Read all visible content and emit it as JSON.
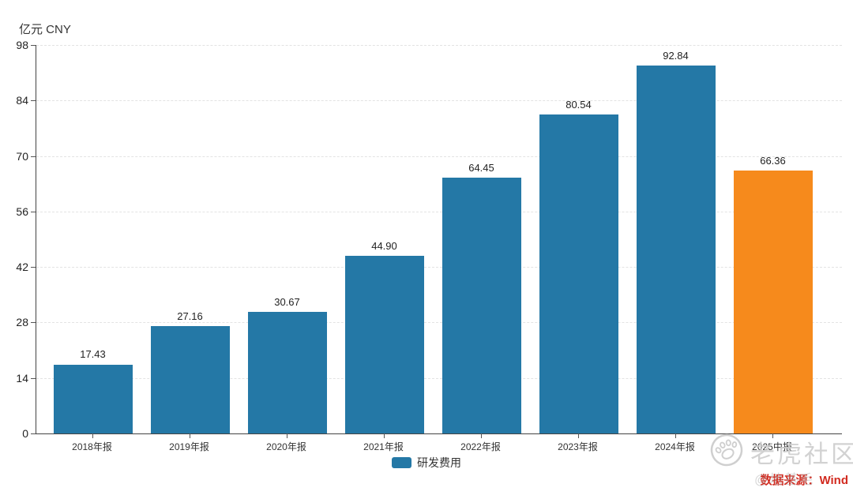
{
  "chart": {
    "unit_label": "亿元 CNY"
  },
  "chart_data": {
    "type": "bar",
    "title": "",
    "xlabel": "",
    "ylabel": "亿元 CNY",
    "categories": [
      "2018年报",
      "2019年报",
      "2020年报",
      "2021年报",
      "2022年报",
      "2023年报",
      "2024年报",
      "2025中报"
    ],
    "series": [
      {
        "name": "研发费用",
        "values": [
          17.43,
          27.16,
          30.67,
          44.9,
          64.45,
          80.54,
          92.84,
          66.36
        ]
      }
    ],
    "value_label_decimals": 2,
    "bar_colors": [
      "#2478A6",
      "#2478A6",
      "#2478A6",
      "#2478A6",
      "#2478A6",
      "#2478A6",
      "#2478A6",
      "#F68A1C"
    ],
    "y_ticks": [
      0,
      14,
      28,
      42,
      56,
      70,
      84,
      98
    ],
    "ylim": [
      0,
      98
    ],
    "grid": "dashed-horizontal",
    "legend_position": "bottom-center"
  },
  "legend": {
    "label": "研发费用",
    "swatch_color": "#2478A6"
  },
  "footer": {
    "source_text": "数据来源：Wind",
    "source_color": "#D22B20"
  },
  "watermark": {
    "community": "老虎社区",
    "logo": "paw-icon",
    "handle": "@地基毛"
  },
  "colors": {
    "bar_blue": "#2478A6",
    "bar_orange": "#F68A1C",
    "axis": "#444444",
    "gridline": "#e3e3e3",
    "watermark_gray": "#cbcbcb"
  }
}
